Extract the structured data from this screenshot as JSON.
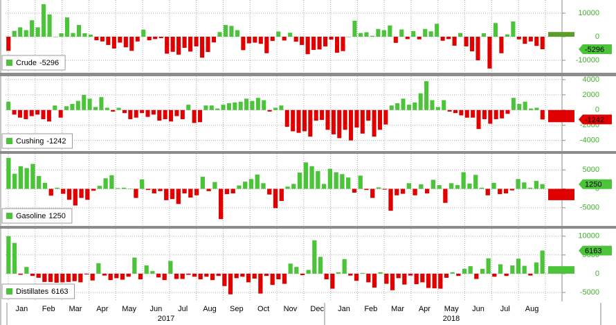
{
  "chart_data": [
    {
      "type": "bar",
      "name": "Crude",
      "latest": -5296,
      "estimate": 2000,
      "up_color": "#4cc43a",
      "down_color": "#e00000",
      "tag_color": "#4cc43a",
      "ylim": [
        -15300,
        15600
      ],
      "yticks": [
        -10000,
        0,
        10000
      ],
      "values": [
        -6000,
        2500,
        4000,
        2800,
        7000,
        4000,
        13800,
        9500,
        0,
        1500,
        8200,
        1600,
        5000,
        1500,
        900,
        -1500,
        -2000,
        -3500,
        -5000,
        -2500,
        -4500,
        -6000,
        -2000,
        3000,
        -1500,
        -1000,
        -600,
        -7200,
        -6400,
        -7600,
        -4700,
        -6300,
        -4100,
        -8900,
        -6500,
        -2400,
        2000,
        5000,
        4600,
        2800,
        -5700,
        -2800,
        -2500,
        -3000,
        -7000,
        -1800,
        2200,
        -1600,
        1700,
        -2100,
        -3500,
        -7400,
        -5600,
        -5400,
        -4100,
        -1200,
        -6800,
        -6100,
        0,
        6800,
        1600,
        1900,
        400,
        3300,
        2800,
        4800,
        -2600,
        3100,
        -1000,
        2400,
        -1100,
        3300,
        2300,
        5500,
        -1700,
        -1000,
        -3800,
        1600,
        -4100,
        -6200,
        -10000,
        1500,
        -13500,
        5800,
        -7000,
        1000,
        6500,
        -1100,
        -3000,
        -2000,
        -3900,
        -5296
      ]
    },
    {
      "type": "bar",
      "name": "Cushing",
      "latest": -1242,
      "estimate": -1600,
      "up_color": "#4cc43a",
      "down_color": "#e00000",
      "tag_color": "#e00000",
      "ylim": [
        -5400,
        4450
      ],
      "yticks": [
        -4000,
        -2000,
        0,
        2000,
        4000
      ],
      "values": [
        1100,
        -600,
        -1000,
        -1200,
        -800,
        -600,
        -1200,
        -1500,
        600,
        -1000,
        500,
        800,
        1200,
        2000,
        1500,
        400,
        1700,
        300,
        -200,
        300,
        -400,
        -1200,
        -1000,
        -400,
        -900,
        -600,
        -1400,
        -1200,
        -1500,
        -800,
        -1200,
        700,
        -1700,
        -1600,
        600,
        600,
        200,
        700,
        900,
        1000,
        1100,
        1500,
        1200,
        1600,
        1300,
        -200,
        300,
        600,
        -2200,
        -2800,
        -3000,
        -2800,
        -3500,
        -1400,
        -1300,
        -2600,
        -3200,
        -3700,
        -2600,
        -4000,
        -2300,
        -3100,
        -1400,
        -3500,
        -2600,
        -1900,
        600,
        900,
        1500,
        700,
        1000,
        2200,
        3800,
        1300,
        400,
        1300,
        -200,
        -400,
        -700,
        -1000,
        -1000,
        -2500,
        -1200,
        -1800,
        -1200,
        -1100,
        -500,
        1600,
        800,
        1100,
        200,
        300,
        -1242
      ]
    },
    {
      "type": "bar",
      "name": "Gasoline",
      "latest": 1250,
      "estimate": -3000,
      "up_color": "#4cc43a",
      "down_color": "#e00000",
      "tag_color": "#4cc43a",
      "ylim": [
        -9800,
        9260
      ],
      "yticks": [
        -5000,
        0,
        5000
      ],
      "values": [
        8200,
        4000,
        6000,
        5500,
        6600,
        3400,
        1600,
        -1800,
        300,
        -1300,
        -2900,
        -4400,
        -2400,
        -2900,
        -500,
        800,
        2800,
        3600,
        200,
        300,
        100,
        -2400,
        2500,
        -300,
        -1200,
        -600,
        -3000,
        -2700,
        -4000,
        -1200,
        -2300,
        -1700,
        3200,
        -600,
        1800,
        -8000,
        -1400,
        -1200,
        900,
        1900,
        2600,
        3800,
        1500,
        -1500,
        -5100,
        -3200,
        600,
        1300,
        4300,
        7000,
        6000,
        4700,
        1300,
        5300,
        4400,
        3900,
        3000,
        -1000,
        3500,
        -300,
        -2400,
        400,
        -200,
        -5800,
        -1700,
        -1300,
        1500,
        -1700,
        1200,
        -1200,
        2400,
        1000,
        -3700,
        1500,
        1000,
        4400,
        1400,
        3700,
        300,
        -1700,
        1600,
        -1400,
        -1200,
        -400,
        2600,
        1700,
        300,
        2100,
        1250
      ]
    },
    {
      "type": "bar",
      "name": "Distillates",
      "latest": 6163,
      "estimate": 2000,
      "up_color": "#4cc43a",
      "down_color": "#e00000",
      "tag_color": "#4cc43a",
      "ylim": [
        -7400,
        12000
      ],
      "yticks": [
        -5000,
        0,
        5000,
        10000
      ],
      "values": [
        10000,
        8200,
        -300,
        1800,
        -600,
        -1100,
        -2200,
        -2200,
        -2400,
        -2300,
        -2200,
        -2000,
        -2300,
        -200,
        -1800,
        2800,
        -500,
        -1700,
        -1200,
        -1600,
        -800,
        4300,
        -1500,
        2200,
        700,
        -1000,
        -1700,
        3400,
        -1400,
        -1400,
        -300,
        -800,
        -1500,
        -800,
        -1700,
        -600,
        -3300,
        -5500,
        -1200,
        -800,
        -2300,
        -1300,
        -5300,
        -600,
        -3000,
        -1500,
        -2700,
        2700,
        1800,
        -400,
        1000,
        8900,
        4500,
        -1500,
        -4000,
        400,
        3900,
        -500,
        -1900,
        200,
        -2300,
        -3700,
        400,
        -2700,
        -4400,
        -1200,
        -2900,
        -500,
        -2800,
        -2300,
        -3800,
        -3900,
        -4000,
        -1100,
        400,
        -600,
        1300,
        2000,
        -1400,
        1300,
        4100,
        -800,
        2500,
        -600,
        2200,
        4000,
        2100,
        -500,
        3000,
        6163
      ]
    }
  ],
  "x_axis": {
    "months": [
      "Jan",
      "Feb",
      "Mar",
      "Apr",
      "May",
      "Jun",
      "Jul",
      "Aug",
      "Sep",
      "Oct",
      "Nov",
      "Dec",
      "Jan",
      "Feb",
      "Mar",
      "Apr",
      "May",
      "Jun",
      "Jul",
      "Aug"
    ],
    "years": [
      "2017",
      "2018"
    ]
  }
}
